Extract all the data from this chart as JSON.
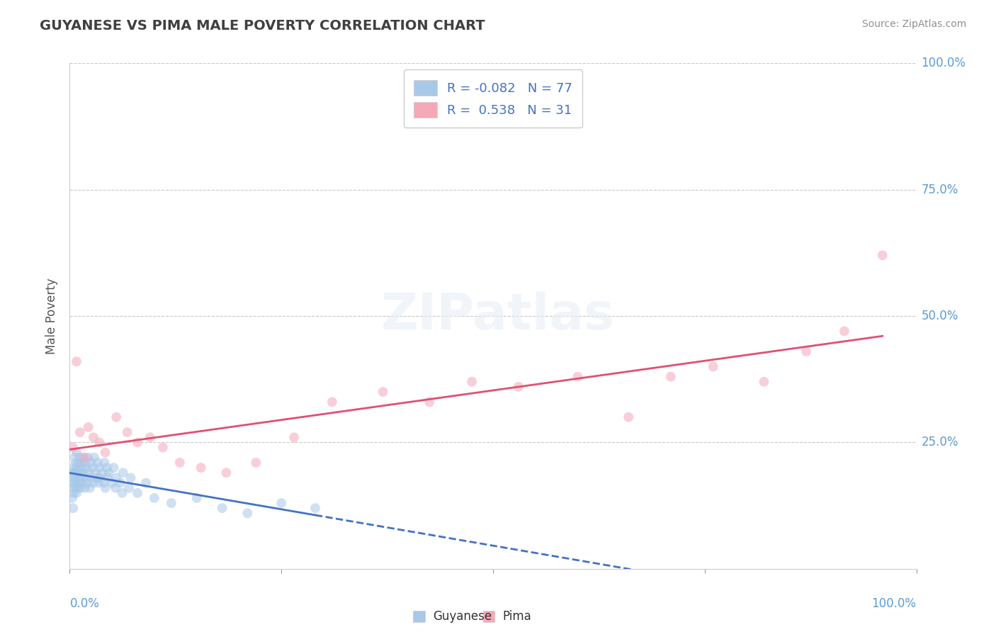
{
  "title": "GUYANESE VS PIMA MALE POVERTY CORRELATION CHART",
  "source": "Source: ZipAtlas.com",
  "ylabel": "Male Poverty",
  "xlim": [
    0,
    1
  ],
  "ylim": [
    0,
    1
  ],
  "xticks": [
    0,
    0.25,
    0.5,
    0.75,
    1.0
  ],
  "yticks": [
    0.25,
    0.5,
    0.75,
    1.0
  ],
  "xticklabels_left": "0.0%",
  "xticklabels_right": "100.0%",
  "yticklabels": [
    "25.0%",
    "50.0%",
    "75.0%",
    "100.0%"
  ],
  "legend_R": [
    -0.082,
    0.538
  ],
  "legend_N": [
    77,
    31
  ],
  "guyanese_color": "#a8c8e8",
  "pima_color": "#f4a8b8",
  "guyanese_line_color": "#4472c4",
  "pima_line_color": "#e05070",
  "background_color": "#ffffff",
  "title_color": "#404040",
  "source_color": "#909090",
  "tick_label_color": "#5b9bd5",
  "grid_color": "#c8c8c8",
  "guyanese_x": [
    0.002,
    0.003,
    0.003,
    0.004,
    0.004,
    0.005,
    0.005,
    0.005,
    0.006,
    0.006,
    0.006,
    0.007,
    0.007,
    0.007,
    0.008,
    0.008,
    0.008,
    0.009,
    0.009,
    0.01,
    0.01,
    0.011,
    0.011,
    0.012,
    0.012,
    0.013,
    0.013,
    0.014,
    0.015,
    0.015,
    0.016,
    0.016,
    0.017,
    0.018,
    0.018,
    0.019,
    0.02,
    0.021,
    0.022,
    0.023,
    0.024,
    0.025,
    0.026,
    0.027,
    0.028,
    0.029,
    0.03,
    0.032,
    0.033,
    0.034,
    0.035,
    0.036,
    0.038,
    0.04,
    0.041,
    0.042,
    0.044,
    0.045,
    0.046,
    0.05,
    0.052,
    0.054,
    0.055,
    0.06,
    0.062,
    0.063,
    0.07,
    0.072,
    0.08,
    0.09,
    0.1,
    0.12,
    0.15,
    0.18,
    0.21,
    0.25,
    0.29
  ],
  "guyanese_y": [
    0.17,
    0.14,
    0.19,
    0.12,
    0.16,
    0.18,
    0.2,
    0.15,
    0.17,
    0.22,
    0.19,
    0.16,
    0.21,
    0.18,
    0.2,
    0.15,
    0.23,
    0.17,
    0.19,
    0.16,
    0.21,
    0.18,
    0.2,
    0.17,
    0.22,
    0.19,
    0.16,
    0.21,
    0.18,
    0.2,
    0.17,
    0.22,
    0.19,
    0.16,
    0.21,
    0.18,
    0.2,
    0.17,
    0.22,
    0.19,
    0.16,
    0.21,
    0.18,
    0.2,
    0.17,
    0.22,
    0.19,
    0.18,
    0.21,
    0.17,
    0.2,
    0.18,
    0.19,
    0.17,
    0.21,
    0.16,
    0.2,
    0.18,
    0.19,
    0.17,
    0.2,
    0.16,
    0.18,
    0.17,
    0.15,
    0.19,
    0.16,
    0.18,
    0.15,
    0.17,
    0.14,
    0.13,
    0.14,
    0.12,
    0.11,
    0.13,
    0.12
  ],
  "pima_x": [
    0.004,
    0.008,
    0.012,
    0.018,
    0.022,
    0.028,
    0.035,
    0.042,
    0.055,
    0.068,
    0.08,
    0.095,
    0.11,
    0.13,
    0.155,
    0.185,
    0.22,
    0.265,
    0.31,
    0.37,
    0.425,
    0.475,
    0.53,
    0.6,
    0.66,
    0.71,
    0.76,
    0.82,
    0.87,
    0.915,
    0.96
  ],
  "pima_y": [
    0.24,
    0.41,
    0.27,
    0.22,
    0.28,
    0.26,
    0.25,
    0.23,
    0.3,
    0.27,
    0.25,
    0.26,
    0.24,
    0.21,
    0.2,
    0.19,
    0.21,
    0.26,
    0.33,
    0.35,
    0.33,
    0.37,
    0.36,
    0.38,
    0.3,
    0.38,
    0.4,
    0.37,
    0.43,
    0.47,
    0.62
  ],
  "marker_size": 100,
  "alpha": 0.55,
  "line_width": 2.0
}
